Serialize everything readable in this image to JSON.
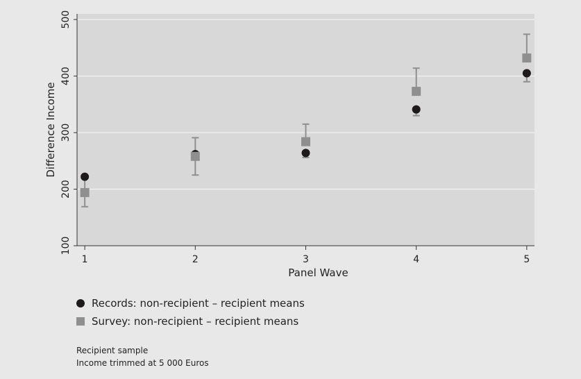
{
  "chart_data": {
    "type": "scatter",
    "title": "",
    "xlabel": "Panel Wave",
    "ylabel": "Difference Income",
    "categories": [
      "1",
      "2",
      "3",
      "4",
      "5"
    ],
    "x": [
      1,
      2,
      3,
      4,
      5
    ],
    "ylim": [
      100,
      500
    ],
    "yticks": [
      "100",
      "200",
      "300",
      "400",
      "500"
    ],
    "grid": true,
    "series": [
      {
        "name": "Records: non-recipient – recipient means",
        "marker": "circle",
        "color": "#1e1a1b",
        "values": [
          222,
          262,
          264,
          341,
          405
        ],
        "err_low": [
          222,
          262,
          256,
          330,
          390
        ],
        "err_high": [
          222,
          262,
          264,
          341,
          405
        ]
      },
      {
        "name": "Survey: non-recipient – recipient means",
        "marker": "square",
        "color": "#8f8f8f",
        "values": [
          194,
          258,
          284,
          373,
          432
        ],
        "err_low": [
          169,
          225,
          284,
          373,
          432
        ],
        "err_high": [
          222,
          291,
          315,
          414,
          474
        ]
      }
    ],
    "notes": [
      "Recipient sample",
      "Income trimmed at 5 000 Euros"
    ]
  },
  "colors": {
    "plot_background": "#d8d8d8",
    "figure_background": "#e8e8e8",
    "errorbar": "#8f8f8f",
    "grid": "#f2f2f2"
  }
}
